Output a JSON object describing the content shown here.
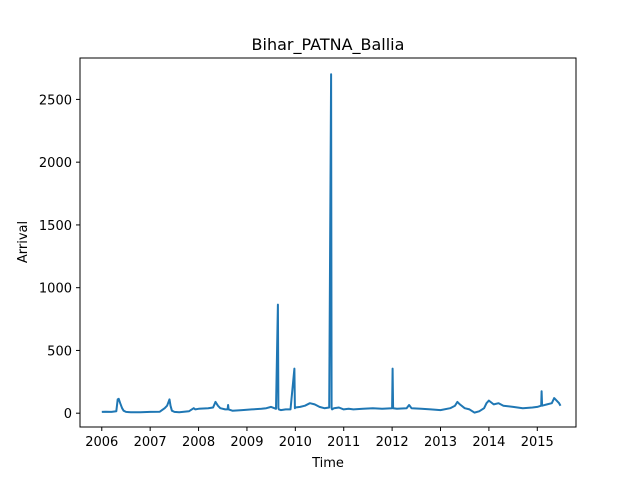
{
  "chart_data": {
    "type": "line",
    "title": "Bihar_PATNA_Ballia",
    "xlabel": "Time",
    "ylabel": "Arrival",
    "xlim": [
      2005.55,
      2015.8
    ],
    "ylim": [
      -110,
      2830
    ],
    "x_ticks": [
      "2006",
      "2007",
      "2008",
      "2009",
      "2010",
      "2011",
      "2012",
      "2013",
      "2014",
      "2015"
    ],
    "y_ticks": [
      0,
      500,
      1000,
      1500,
      2000,
      2500
    ],
    "grid": false,
    "legend": "none",
    "series": [
      {
        "color": "#1f77b4",
        "x": [
          2006.0,
          2006.08,
          2006.2,
          2006.3,
          2006.33,
          2006.35,
          2006.38,
          2006.42,
          2006.45,
          2006.5,
          2006.6,
          2006.8,
          2007.0,
          2007.2,
          2007.3,
          2007.35,
          2007.4,
          2007.42,
          2007.45,
          2007.5,
          2007.6,
          2007.8,
          2007.9,
          2007.93,
          2008.0,
          2008.2,
          2008.3,
          2008.35,
          2008.4,
          2008.45,
          2008.55,
          2008.6,
          2008.61,
          2008.62,
          2008.7,
          2008.9,
          2009.1,
          2009.3,
          2009.4,
          2009.5,
          2009.6,
          2009.64,
          2009.65,
          2009.66,
          2009.7,
          2009.8,
          2009.9,
          2009.98,
          2009.99,
          2010.0,
          2010.1,
          2010.2,
          2010.3,
          2010.4,
          2010.5,
          2010.6,
          2010.7,
          2010.74,
          2010.75,
          2010.76,
          2010.8,
          2010.9,
          2011.0,
          2011.1,
          2011.2,
          2011.4,
          2011.6,
          2011.8,
          2012.0,
          2012.01,
          2012.02,
          2012.1,
          2012.3,
          2012.35,
          2012.4,
          2012.6,
          2012.8,
          2013.0,
          2013.2,
          2013.3,
          2013.35,
          2013.4,
          2013.5,
          2013.6,
          2013.7,
          2013.8,
          2013.9,
          2013.95,
          2014.0,
          2014.1,
          2014.2,
          2014.3,
          2014.5,
          2014.7,
          2014.9,
          2015.0,
          2015.08,
          2015.09,
          2015.1,
          2015.2,
          2015.3,
          2015.35,
          2015.4,
          2015.45,
          2015.48
        ],
        "y": [
          10,
          12,
          10,
          15,
          110,
          115,
          80,
          40,
          20,
          10,
          8,
          8,
          10,
          12,
          40,
          60,
          110,
          60,
          20,
          10,
          8,
          15,
          40,
          30,
          35,
          40,
          45,
          90,
          60,
          40,
          30,
          30,
          65,
          30,
          20,
          25,
          30,
          35,
          40,
          50,
          35,
          865,
          40,
          30,
          25,
          30,
          30,
          355,
          40,
          45,
          50,
          60,
          80,
          70,
          50,
          40,
          45,
          2700,
          40,
          30,
          40,
          45,
          30,
          35,
          30,
          35,
          40,
          35,
          40,
          355,
          40,
          35,
          40,
          65,
          40,
          35,
          30,
          25,
          40,
          60,
          90,
          70,
          40,
          30,
          5,
          15,
          40,
          80,
          100,
          70,
          80,
          60,
          50,
          40,
          45,
          50,
          60,
          175,
          60,
          70,
          80,
          120,
          100,
          80,
          60
        ]
      }
    ]
  }
}
